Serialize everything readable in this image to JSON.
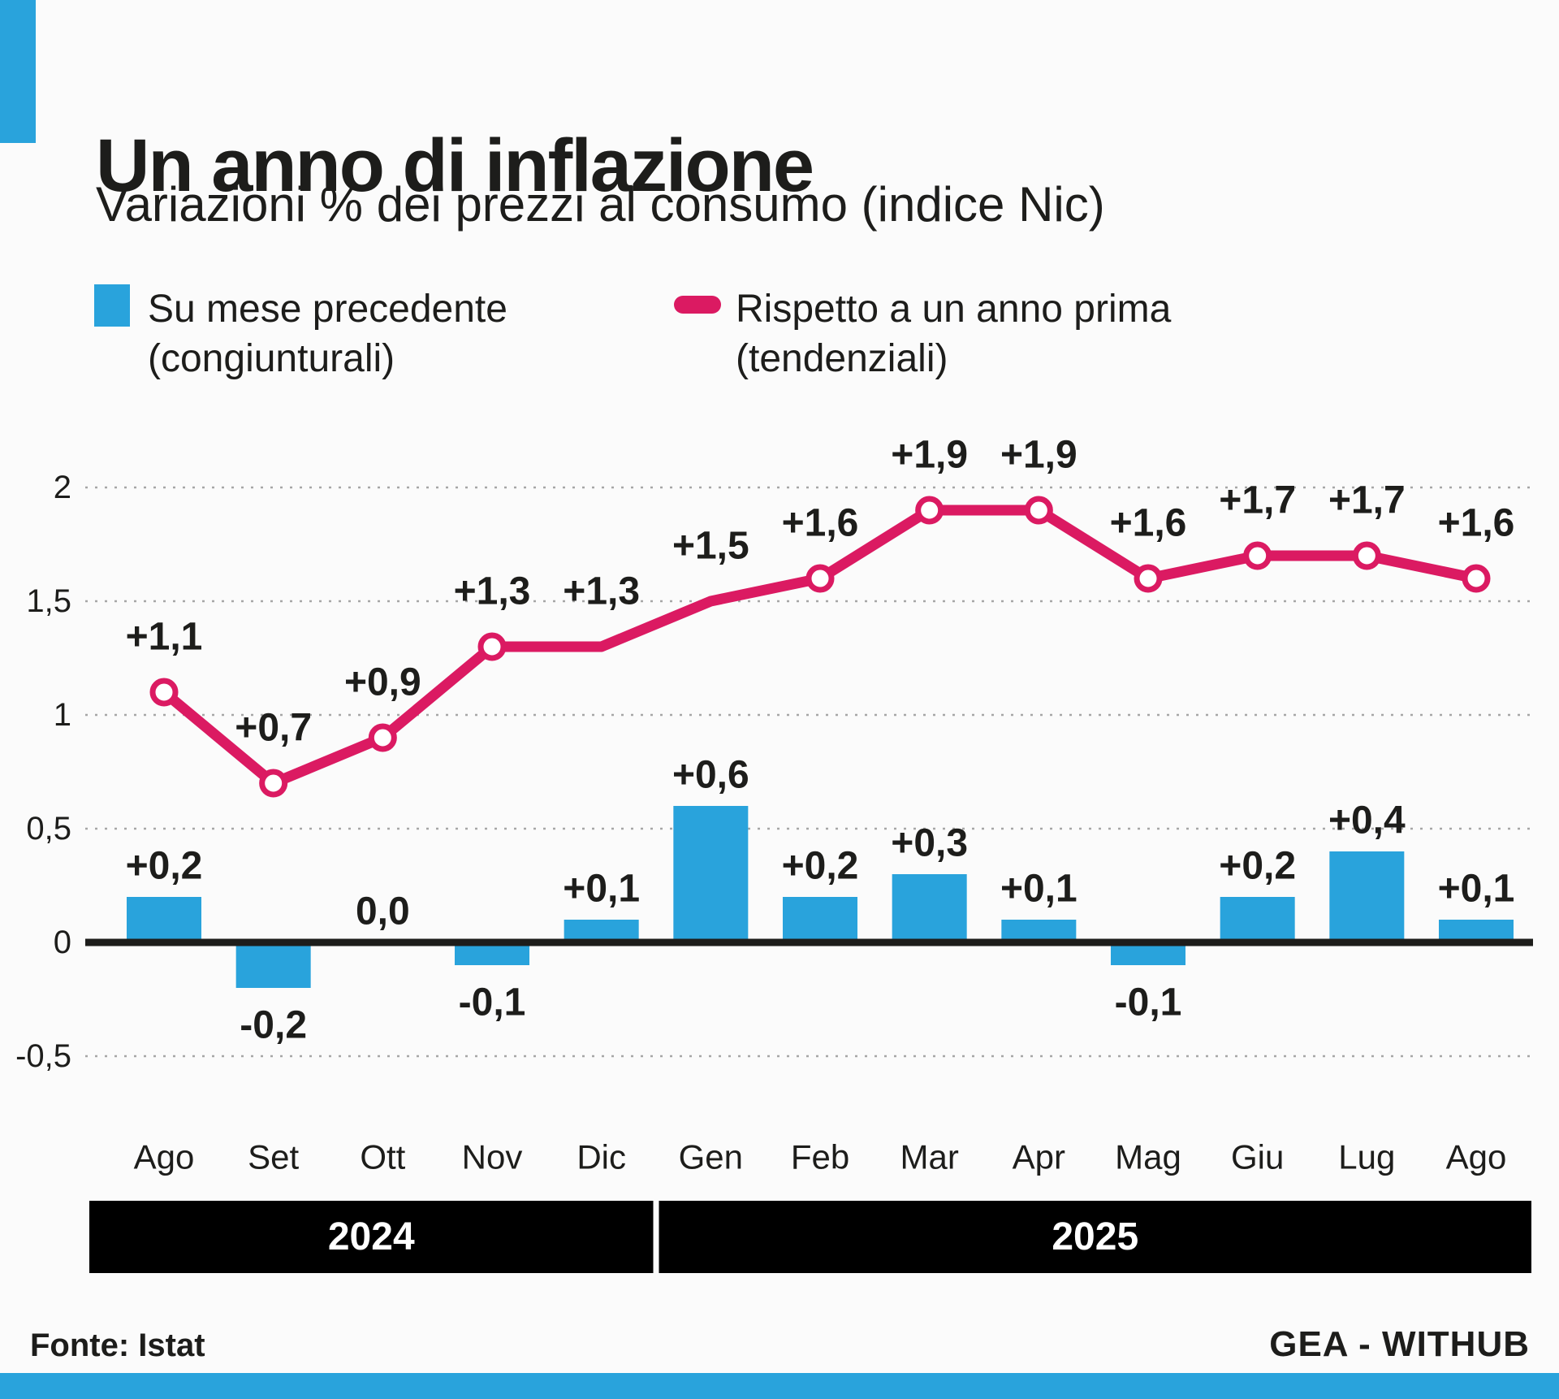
{
  "header": {
    "title": "Un anno di inflazione",
    "subtitle": "Variazioni % dei prezzi al consumo (indice Nic)"
  },
  "legend": {
    "bar_series": {
      "line1": "Su mese precedente",
      "line2": "(congiunturali)"
    },
    "line_series": {
      "line1": "Rispetto a un anno prima",
      "line2": "(tendenziali)"
    }
  },
  "footer": {
    "source": "Fonte: Istat",
    "credit": "GEA - WITHUB"
  },
  "colors": {
    "blue": "#29A3DC",
    "pink": "#DB1A62",
    "text": "#1D1D1B",
    "grid": "#A6A6A6",
    "band_bg": "#000000",
    "band_text": "#FFFFFF",
    "marker_fill": "#FFFFFF"
  },
  "chart_data": {
    "type": "bar+line",
    "title": "Un anno di inflazione",
    "subtitle": "Variazioni % dei prezzi al consumo (indice Nic)",
    "categories": [
      "Ago",
      "Set",
      "Ott",
      "Nov",
      "Dic",
      "Gen",
      "Feb",
      "Mar",
      "Apr",
      "Mag",
      "Giu",
      "Lug",
      "Ago"
    ],
    "year_groups": [
      {
        "label": "2024",
        "from_index": 0,
        "to_index": 4
      },
      {
        "label": "2025",
        "from_index": 5,
        "to_index": 12
      }
    ],
    "series": [
      {
        "name": "Su mese precedente (congiunturali)",
        "type": "bar",
        "color": "#29A3DC",
        "values": [
          0.2,
          -0.2,
          0.0,
          -0.1,
          0.1,
          0.6,
          0.2,
          0.3,
          0.1,
          -0.1,
          0.2,
          0.4,
          0.1
        ],
        "labels": [
          "+0,2",
          "-0,2",
          "0,0",
          "-0,1",
          "+0,1",
          "+0,6",
          "+0,2",
          "+0,3",
          "+0,1",
          "-0,1",
          "+0,2",
          "+0,4",
          "+0,1"
        ]
      },
      {
        "name": "Rispetto a un anno prima (tendenziali)",
        "type": "line",
        "color": "#DB1A62",
        "values": [
          1.1,
          0.7,
          0.9,
          1.3,
          1.3,
          1.5,
          1.6,
          1.9,
          1.9,
          1.6,
          1.7,
          1.7,
          1.6
        ],
        "labels": [
          "+1,1",
          "+0,7",
          "+0,9",
          "+1,3",
          "+1,3",
          "+1,5",
          "+1,6",
          "+1,9",
          "+1,9",
          "+1,6",
          "+1,7",
          "+1,7",
          "+1,6"
        ],
        "markers": [
          true,
          true,
          true,
          true,
          false,
          false,
          true,
          true,
          true,
          true,
          true,
          true,
          true
        ]
      }
    ],
    "y_axis": {
      "range": [
        -0.5,
        2
      ],
      "ticks": [
        2,
        1.5,
        1,
        0.5,
        0,
        -0.5
      ],
      "tick_labels": [
        "2",
        "1,5",
        "1",
        "0,5",
        "0",
        "-0,5"
      ],
      "grid": "dotted",
      "zero_line": true
    },
    "legend_position": "top"
  }
}
